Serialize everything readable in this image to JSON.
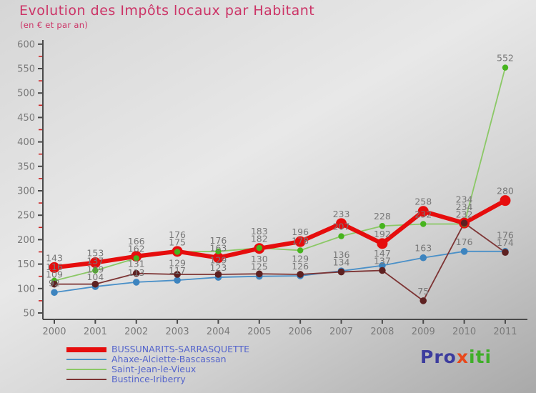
{
  "header": {
    "title": "Evolution des Impôts locaux par Habitant",
    "subtitle": "(en € et par an)",
    "title_color": "#cc3366"
  },
  "chart_data": {
    "type": "line",
    "title": "Evolution des Impôts locaux par Habitant",
    "subtitle": "(en € et par an)",
    "x": [
      "2000",
      "2001",
      "2002",
      "2003",
      "2004",
      "2005",
      "2006",
      "2007",
      "2008",
      "2009",
      "2010",
      "2011"
    ],
    "series": [
      {
        "name": "BUSSUNARITS-SARRASQUETTE",
        "color": "#e60d0d",
        "marker_color": "#e60d0d",
        "line_width": 6,
        "marker_radius": 7.5,
        "values": [
          143,
          153,
          166,
          176,
          163,
          182,
          196,
          233,
          192,
          258,
          234,
          280
        ]
      },
      {
        "name": "Ahaxe-Alciette-Bascassan",
        "color": "#4a90c8",
        "marker_color": "#3d84bf",
        "line_width": 1.8,
        "marker_radius": 4.8,
        "values": [
          92,
          104,
          113,
          117,
          123,
          125,
          126,
          136,
          147,
          163,
          176,
          176
        ]
      },
      {
        "name": "Saint-Jean-le-Vieux",
        "color": "#8bc866",
        "marker_color": "#46b41e",
        "line_width": 1.8,
        "marker_radius": 4.2,
        "values": [
          116,
          137,
          162,
          175,
          176,
          183,
          178,
          207,
          228,
          232,
          232,
          552
        ]
      },
      {
        "name": "Bustince-Iriberry",
        "color": "#7d3434",
        "marker_color": "#5e2121",
        "line_width": 1.8,
        "marker_radius": 4.8,
        "values": [
          109,
          109,
          131,
          129,
          129,
          130,
          129,
          134,
          137,
          75,
          234,
          174
        ]
      }
    ],
    "ylim": [
      50,
      600
    ],
    "yticks": [
      50,
      100,
      150,
      200,
      250,
      300,
      350,
      400,
      450,
      500,
      550,
      600
    ],
    "minor_yticks": [
      75,
      125,
      175,
      225,
      275,
      325,
      375,
      425,
      475,
      525,
      575
    ],
    "grid": false,
    "legend_position": "bottom-left",
    "axis_color": "#4a4a4a",
    "tick_label_color": "#7a7a7a",
    "minor_tick_color": "#cc2222",
    "point_label_color": "#777777",
    "point_labels_shown": true
  },
  "legend": {
    "text_color": "#5565cc"
  },
  "logo": {
    "parts": [
      {
        "text": "Pro",
        "color": "#3c3c9e"
      },
      {
        "text": "x",
        "color": "#e8481c"
      },
      {
        "text": "iti",
        "color": "#3fae29"
      }
    ]
  }
}
